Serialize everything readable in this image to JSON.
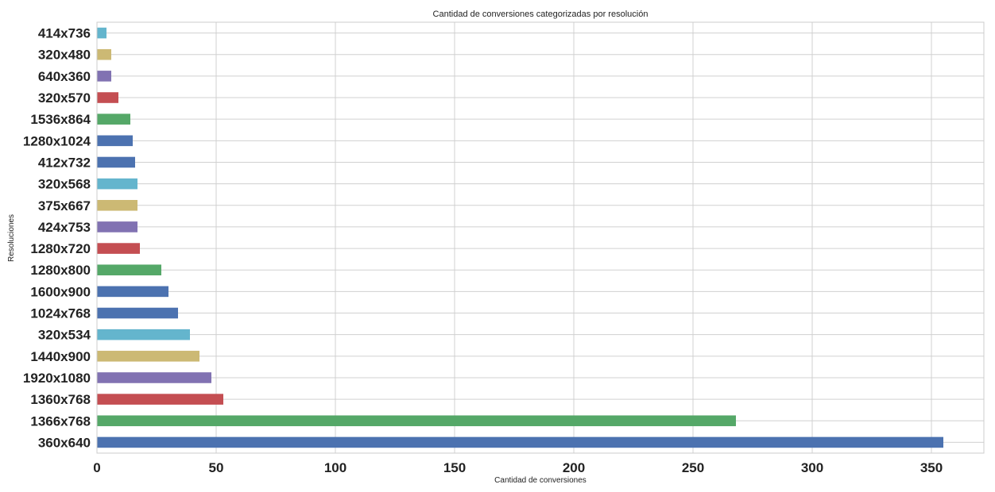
{
  "chart_data": {
    "type": "bar",
    "orientation": "horizontal",
    "title": "Cantidad de conversiones categorizadas por resolución",
    "xlabel": "Cantidad de conversiones",
    "ylabel": "Resoluciones",
    "xlim": [
      0,
      372
    ],
    "xticks": [
      0,
      50,
      100,
      150,
      200,
      250,
      300,
      350
    ],
    "grid": true,
    "legend": "none",
    "categories": [
      "360x640",
      "1366x768",
      "1360x768",
      "1920x1080",
      "1440x900",
      "320x534",
      "1024x768",
      "1600x900",
      "1280x800",
      "1280x720",
      "424x753",
      "375x667",
      "320x568",
      "412x732",
      "1280x1024",
      "1536x864",
      "320x570",
      "640x360",
      "320x480",
      "414x736"
    ],
    "values": [
      355,
      268,
      53,
      48,
      43,
      39,
      34,
      30,
      27,
      18,
      17,
      17,
      17,
      16,
      15,
      14,
      9,
      6,
      6,
      4
    ],
    "colors": [
      "#4c72b0",
      "#55a868",
      "#c44e52",
      "#8172b2",
      "#ccb974",
      "#64b5cd",
      "#4c72b0",
      "#4c72b0",
      "#55a868",
      "#c44e52",
      "#8172b2",
      "#ccb974",
      "#64b5cd",
      "#4c72b0",
      "#4c72b0",
      "#55a868",
      "#c44e52",
      "#8172b2",
      "#ccb974",
      "#64b5cd"
    ]
  }
}
